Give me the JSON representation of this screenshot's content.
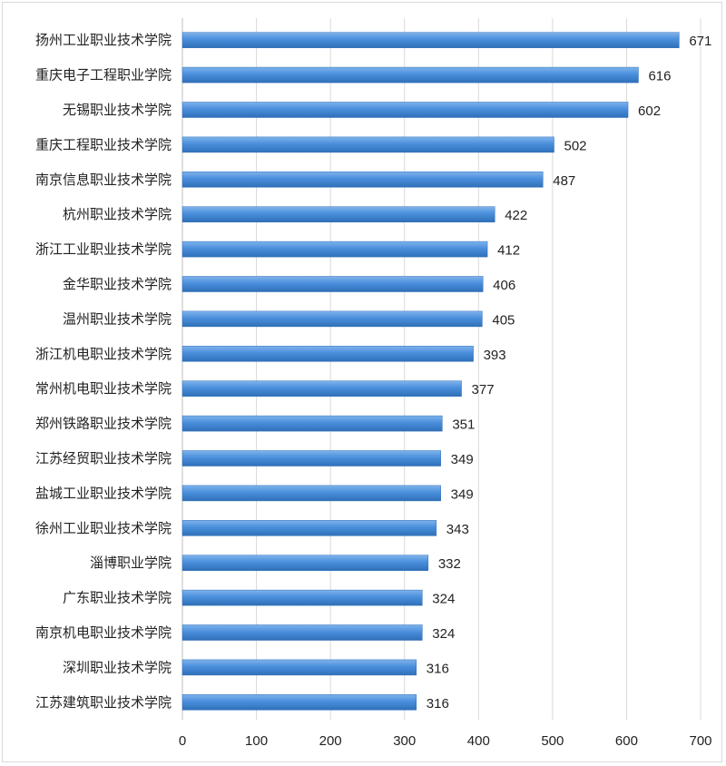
{
  "chart_data": {
    "type": "bar",
    "orientation": "horizontal",
    "title": "",
    "xlabel": "",
    "ylabel": "",
    "categories": [
      "扬州工业职业技术学院",
      "重庆电子工程职业学院",
      "无锡职业技术学院",
      "重庆工程职业技术学院",
      "南京信息职业技术学院",
      "杭州职业技术学院",
      "浙江工业职业技术学院",
      "金华职业技术学院",
      "温州职业技术学院",
      "浙江机电职业技术学院",
      "常州机电职业技术学院",
      "郑州铁路职业技术学院",
      "江苏经贸职业技术学院",
      "盐城工业职业技术学院",
      "徐州工业职业技术学院",
      "淄博职业学院",
      "广东职业技术学院",
      "南京机电职业技术学院",
      "深圳职业技术学院",
      "江苏建筑职业技术学院"
    ],
    "values": [
      671,
      616,
      602,
      502,
      487,
      422,
      412,
      406,
      405,
      393,
      377,
      351,
      349,
      349,
      343,
      332,
      324,
      324,
      316,
      316
    ],
    "xlim": [
      0,
      700
    ],
    "xticks": [
      0,
      100,
      200,
      300,
      400,
      500,
      600,
      700
    ],
    "grid": "vertical",
    "legend": "none",
    "colors": {
      "bar": "#4a8fdc",
      "bar_light": "#7fb3ec",
      "bar_dark": "#2f6fb8"
    }
  }
}
